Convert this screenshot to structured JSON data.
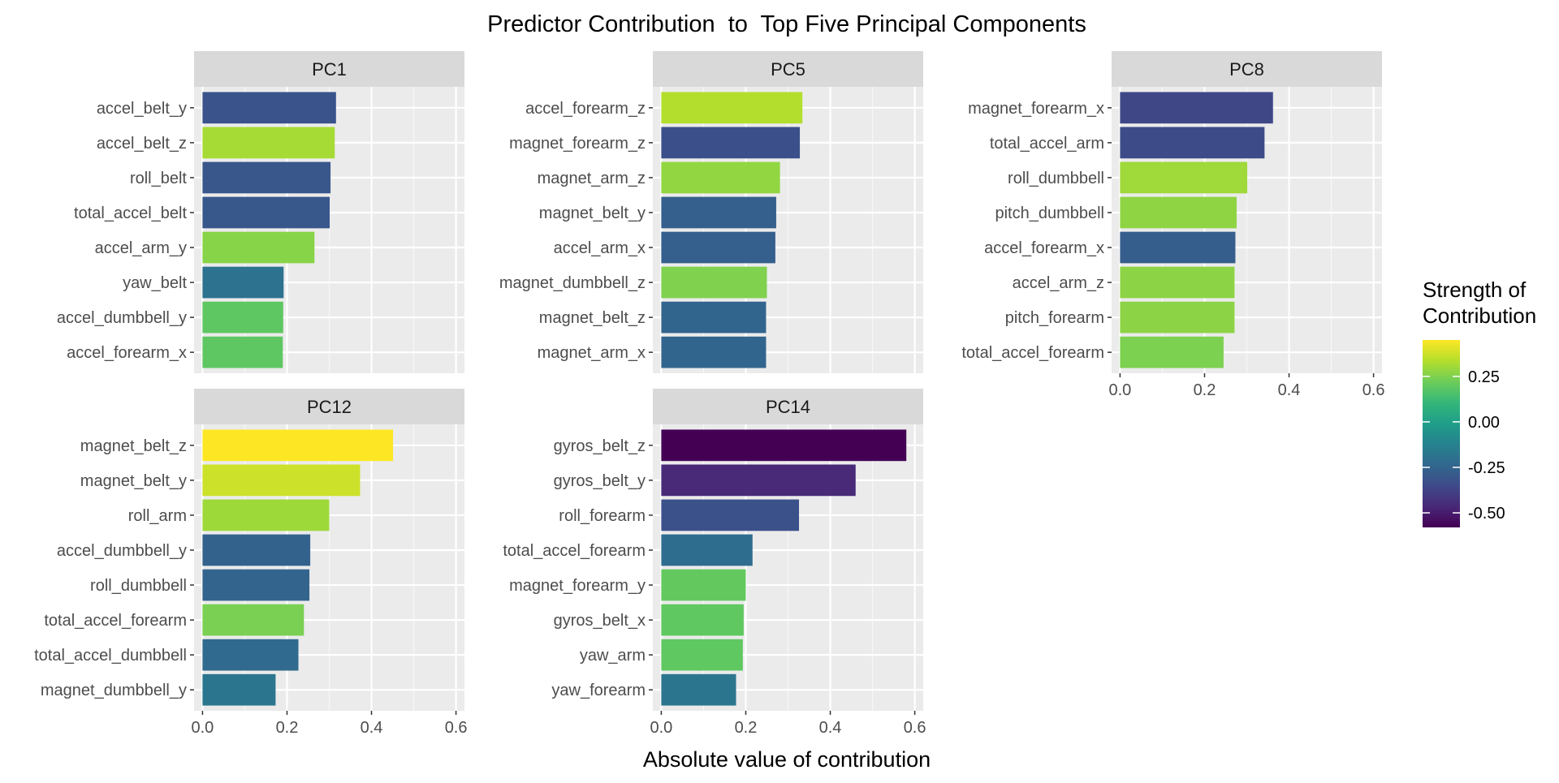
{
  "chart_data": {
    "type": "bar",
    "title": "Predictor Contribution  to  Top Five Principal Components",
    "xlabel": "Absolute value of contribution",
    "ylabel": "",
    "xlim": [
      -0.02,
      0.62
    ],
    "x_ticks": [
      0.0,
      0.2,
      0.4,
      0.6
    ],
    "x_tick_labels": [
      "0.0",
      "0.2",
      "0.4",
      "0.6"
    ],
    "grid": true,
    "legend": {
      "title": "Strength of\nContribution",
      "placement": "right",
      "range": [
        -0.58,
        0.45
      ],
      "ticks": [
        0.25,
        0.0,
        -0.25,
        -0.5
      ],
      "tick_labels": [
        "0.25",
        "0.00",
        "-0.25",
        "-0.50"
      ],
      "colormap": "viridis"
    },
    "panels": [
      {
        "name": "PC1",
        "categories": [
          "accel_belt_y",
          "accel_belt_z",
          "roll_belt",
          "total_accel_belt",
          "accel_arm_y",
          "yaw_belt",
          "accel_dumbbell_y",
          "accel_forearm_x"
        ],
        "values": [
          0.316,
          0.313,
          0.303,
          0.301,
          0.265,
          0.192,
          0.191,
          0.19
        ],
        "contribution": [
          -0.316,
          0.313,
          -0.303,
          -0.301,
          0.265,
          -0.192,
          0.191,
          0.19
        ]
      },
      {
        "name": "PC5",
        "categories": [
          "accel_forearm_z",
          "magnet_forearm_z",
          "magnet_arm_z",
          "magnet_belt_y",
          "accel_arm_x",
          "magnet_dumbbell_z",
          "magnet_belt_z",
          "magnet_arm_x"
        ],
        "values": [
          0.334,
          0.328,
          0.281,
          0.272,
          0.27,
          0.25,
          0.248,
          0.248
        ],
        "contribution": [
          0.334,
          -0.328,
          0.281,
          -0.272,
          -0.27,
          0.25,
          -0.248,
          -0.248
        ]
      },
      {
        "name": "PC8",
        "categories": [
          "magnet_forearm_x",
          "total_accel_arm",
          "roll_dumbbell",
          "pitch_dumbbell",
          "accel_forearm_x",
          "accel_arm_z",
          "pitch_forearm",
          "total_accel_forearm"
        ],
        "values": [
          0.362,
          0.342,
          0.301,
          0.276,
          0.273,
          0.271,
          0.271,
          0.245
        ],
        "contribution": [
          -0.362,
          -0.342,
          0.301,
          0.276,
          -0.273,
          0.271,
          0.271,
          0.245
        ]
      },
      {
        "name": "PC12",
        "categories": [
          "magnet_belt_z",
          "magnet_belt_y",
          "roll_arm",
          "accel_dumbbell_y",
          "roll_dumbbell",
          "total_accel_forearm",
          "total_accel_dumbbell",
          "magnet_dumbbell_y"
        ],
        "values": [
          0.451,
          0.373,
          0.3,
          0.255,
          0.253,
          0.24,
          0.227,
          0.173
        ],
        "contribution": [
          0.451,
          0.373,
          0.3,
          -0.255,
          -0.253,
          0.24,
          -0.227,
          -0.173
        ]
      },
      {
        "name": "PC14",
        "categories": [
          "gyros_belt_z",
          "gyros_belt_y",
          "roll_forearm",
          "total_accel_forearm",
          "magnet_forearm_y",
          "gyros_belt_x",
          "yaw_arm",
          "yaw_forearm"
        ],
        "values": [
          0.58,
          0.46,
          0.326,
          0.216,
          0.2,
          0.195,
          0.193,
          0.177
        ],
        "contribution": [
          -0.58,
          -0.46,
          -0.326,
          -0.216,
          0.2,
          0.195,
          0.193,
          -0.177
        ]
      }
    ]
  }
}
